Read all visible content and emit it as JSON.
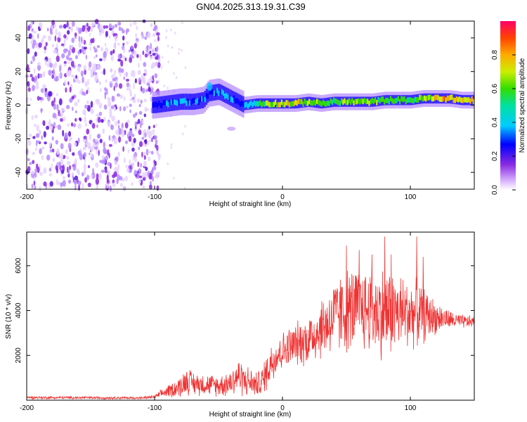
{
  "title": "GN04.2025.313.19.31.C39",
  "chart_data": [
    {
      "type": "heatmap",
      "name": "spectrogram",
      "xlabel": "Height of straight line (km)",
      "ylabel": "Frequency (Hz)",
      "xlim": [
        -200,
        150
      ],
      "ylim": [
        -50,
        50
      ],
      "x_ticks": [
        -200,
        -100,
        0,
        100
      ],
      "y_ticks": [
        -40,
        -20,
        0,
        20,
        40
      ],
      "noise_region_km": [
        -200,
        -100
      ],
      "ridge": {
        "x": [
          -100,
          -90,
          -80,
          -70,
          -62,
          -58,
          -50,
          -40,
          -35,
          -30,
          -20,
          -10,
          0,
          10,
          20,
          30,
          40,
          50,
          60,
          70,
          80,
          90,
          100,
          110,
          120,
          130,
          140,
          150
        ],
        "freq": [
          0,
          1,
          2,
          2,
          3,
          7,
          8,
          4,
          2,
          0,
          1,
          1,
          1,
          1,
          2,
          1,
          2,
          2,
          2,
          2,
          3,
          3,
          3,
          4,
          4,
          4,
          3,
          3
        ],
        "amplitude": [
          0.35,
          0.4,
          0.45,
          0.45,
          0.4,
          0.35,
          0.45,
          0.45,
          0.35,
          0.4,
          0.6,
          0.75,
          0.8,
          0.8,
          0.75,
          0.75,
          0.7,
          0.75,
          0.75,
          0.7,
          0.65,
          0.65,
          0.65,
          0.75,
          0.9,
          0.85,
          0.85,
          0.85
        ]
      },
      "colorbar": {
        "label": "Normalized spectral amplitude",
        "range": [
          0,
          1
        ],
        "ticks": [
          0.0,
          0.2,
          0.4,
          0.6,
          0.8
        ]
      }
    },
    {
      "type": "line",
      "name": "snr",
      "xlabel": "Height of straight line (km)",
      "ylabel": "SNR (10 * v/v)",
      "xlim": [
        -200,
        150
      ],
      "ylim": [
        0,
        7500
      ],
      "x_ticks": [
        -200,
        -100,
        0,
        100
      ],
      "y_ticks": [
        2000,
        4000,
        6000
      ],
      "color": "#ee3333",
      "envelope": {
        "x": [
          -200,
          -150,
          -110,
          -100,
          -90,
          -80,
          -75,
          -70,
          -60,
          -50,
          -40,
          -35,
          -30,
          -20,
          -15,
          -10,
          -5,
          0,
          10,
          20,
          30,
          40,
          50,
          60,
          70,
          80,
          90,
          100,
          110,
          120,
          130,
          140,
          150
        ],
        "mean": [
          120,
          110,
          100,
          150,
          400,
          600,
          900,
          750,
          700,
          650,
          800,
          1100,
          900,
          700,
          900,
          1600,
          2000,
          2200,
          2500,
          2700,
          3200,
          3700,
          4000,
          4100,
          4000,
          3900,
          3900,
          3900,
          3800,
          3700,
          3600,
          3500,
          3500
        ],
        "spread": [
          60,
          60,
          50,
          80,
          250,
          450,
          600,
          500,
          450,
          450,
          600,
          800,
          700,
          500,
          700,
          900,
          900,
          800,
          900,
          1100,
          1300,
          1600,
          1800,
          1800,
          1800,
          2000,
          1700,
          1500,
          1200,
          700,
          400,
          300,
          250
        ]
      },
      "peaks": [
        [
          50,
          6900
        ],
        [
          60,
          6700
        ],
        [
          70,
          6500
        ],
        [
          80,
          7300
        ],
        [
          85,
          6500
        ],
        [
          105,
          7300
        ],
        [
          110,
          6400
        ]
      ]
    }
  ],
  "colors": {
    "line": "#ee3333",
    "noise": "#7a2ef0",
    "frame": "#000000"
  }
}
